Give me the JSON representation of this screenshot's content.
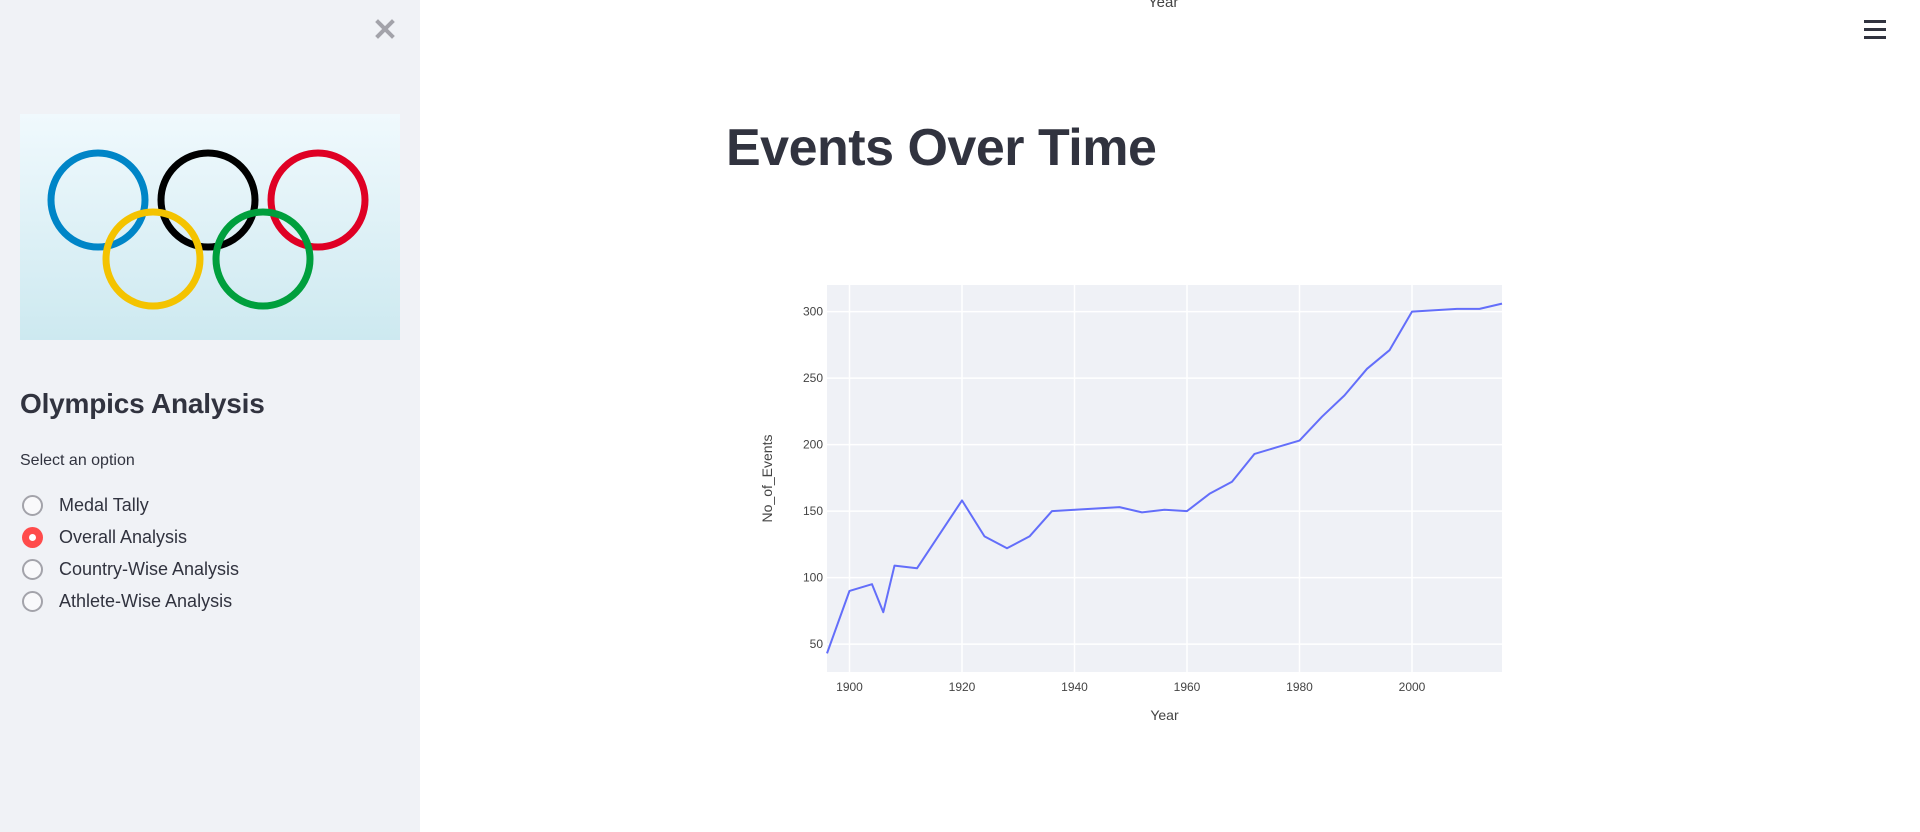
{
  "sidebar": {
    "close_icon": "close-icon",
    "logo_alt": "Olympic rings",
    "title": "Olympics Analysis",
    "radio_label": "Select an option",
    "options": [
      {
        "label": "Medal Tally",
        "selected": false
      },
      {
        "label": "Overall Analysis",
        "selected": true
      },
      {
        "label": "Country-Wise Analysis",
        "selected": false
      },
      {
        "label": "Athlete-Wise Analysis",
        "selected": false
      }
    ],
    "accent": "#ff4b4b"
  },
  "header": {
    "menu_icon": "hamburger-menu-icon",
    "clipped_axis_label": "Year"
  },
  "main": {
    "title": "Events Over Time"
  },
  "chart_data": {
    "type": "line",
    "title": "",
    "xlabel": "Year",
    "ylabel": "No_of_Events",
    "x": [
      1896,
      1900,
      1904,
      1906,
      1908,
      1912,
      1920,
      1924,
      1928,
      1932,
      1936,
      1948,
      1952,
      1956,
      1960,
      1964,
      1968,
      1972,
      1976,
      1980,
      1984,
      1988,
      1992,
      1996,
      2000,
      2004,
      2008,
      2012,
      2016
    ],
    "series": [
      {
        "name": "No_of_Events",
        "color": "#636efa",
        "values": [
          43,
          90,
          95,
          74,
          109,
          107,
          158,
          131,
          122,
          131,
          150,
          153,
          149,
          151,
          150,
          163,
          172,
          193,
          198,
          203,
          221,
          237,
          257,
          271,
          300,
          301,
          302,
          302,
          306
        ]
      }
    ],
    "xticks": [
      1900,
      1920,
      1940,
      1960,
      1980,
      2000
    ],
    "yticks": [
      50,
      100,
      150,
      200,
      250,
      300
    ],
    "xlim": [
      1896,
      2016
    ],
    "ylim": [
      29,
      320
    ],
    "grid": true,
    "plot_bgcolor": "#e5ecf6",
    "legend": "none"
  }
}
